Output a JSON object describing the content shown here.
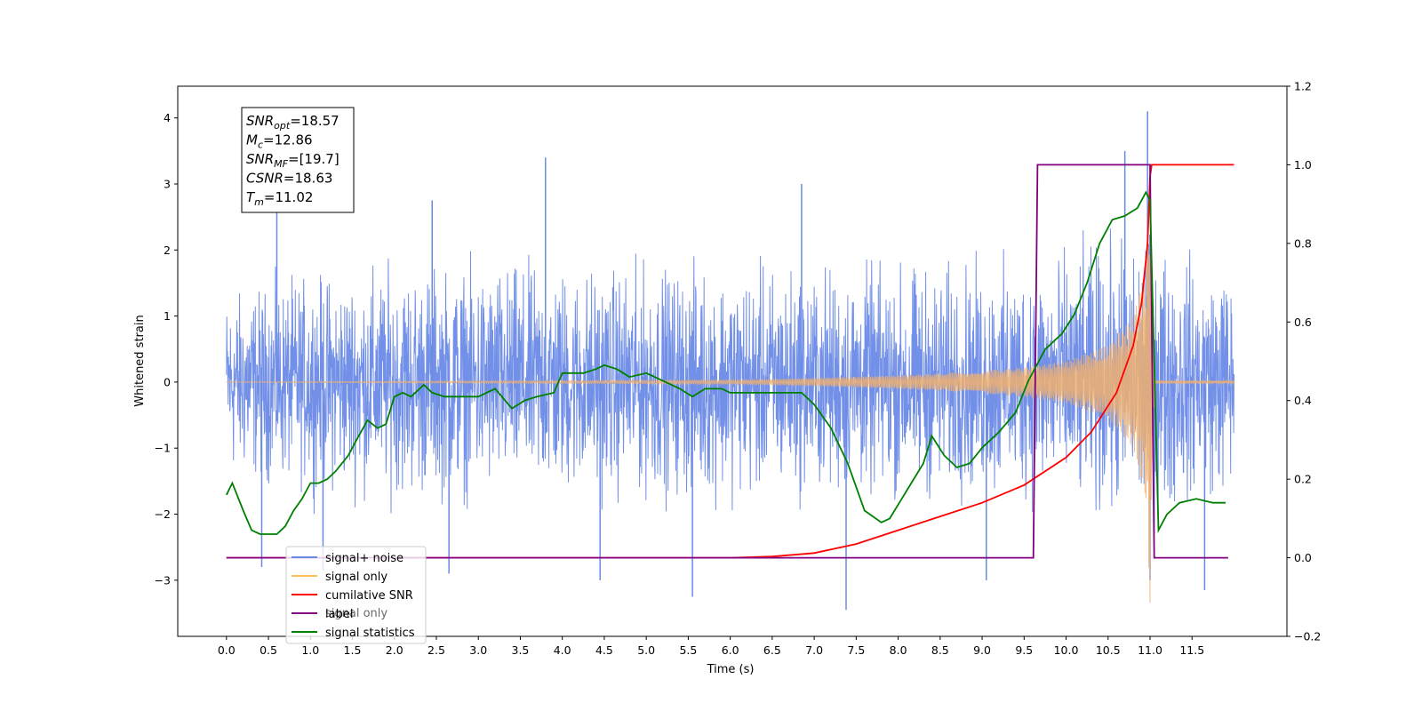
{
  "chart_data": {
    "type": "line",
    "xlabel": "Time (s)",
    "ylabel": "Whitened strain",
    "xlim": [
      -0.58,
      12.63
    ],
    "ylim": [
      -3.85,
      4.48
    ],
    "y2lim": [
      -0.2,
      1.2
    ],
    "x_ticks": [
      0.0,
      0.5,
      1.0,
      1.5,
      2.0,
      2.5,
      3.0,
      3.5,
      4.0,
      4.5,
      5.0,
      5.5,
      6.0,
      6.5,
      7.0,
      7.5,
      8.0,
      8.5,
      9.0,
      9.5,
      10.0,
      10.5,
      11.0,
      11.5
    ],
    "x_tick_labels": [
      "0.0",
      "0.5",
      "1.0",
      "1.5",
      "2.0",
      "2.5",
      "3.0",
      "3.5",
      "4.0",
      "4.5",
      "5.0",
      "5.5",
      "6.0",
      "6.5",
      "7.0",
      "7.5",
      "8.0",
      "8.5",
      "9.0",
      "9.5",
      "10.0",
      "10.5",
      "11.0",
      "11.5"
    ],
    "y_ticks": [
      -3,
      -2,
      -1,
      0,
      1,
      2,
      3,
      4
    ],
    "y_tick_labels": [
      "−3",
      "−2",
      "−1",
      "0",
      "1",
      "2",
      "3",
      "4"
    ],
    "y2_ticks": [
      -0.2,
      0.0,
      0.2,
      0.4,
      0.6,
      0.8,
      1.0,
      1.2
    ],
    "y2_tick_labels": [
      "−0.2",
      "0.0",
      "0.2",
      "0.4",
      "0.6",
      "0.8",
      "1.0",
      "1.2"
    ],
    "grid": false,
    "legend_position": "lower-left",
    "legend": [
      {
        "label": "signal+ noise",
        "color": "#6a8ae6"
      },
      {
        "label": "signal only",
        "color": "#ffc05c"
      },
      {
        "label": "cumilative SNR",
        "color": "#ff0000"
      },
      {
        "label": "label",
        "color": "#800080"
      },
      {
        "label": "signal statistics",
        "color": "#008000"
      }
    ],
    "hidden_legend_text": [
      "signal only"
    ],
    "annotation": {
      "lines": [
        {
          "main": "SNR",
          "sub": "opt",
          "value": "=18.57"
        },
        {
          "main": "M",
          "sub": "c",
          "value": "=12.86"
        },
        {
          "main": "SNR",
          "sub": "MF",
          "value": "=[19.7]"
        },
        {
          "main": "CSNR",
          "sub": "",
          "value": "=18.63"
        },
        {
          "main": "T",
          "sub": "m",
          "value": "=11.02"
        }
      ]
    },
    "series": [
      {
        "name": "signal+ noise",
        "axis": "left",
        "color": "#6a8ae6",
        "style": "noise",
        "x_range": [
          0.0,
          12.0
        ],
        "envelope": {
          "x": [
            0.0,
            1.0,
            2.0,
            3.0,
            4.0,
            5.0,
            6.0,
            7.0,
            8.0,
            9.0,
            9.6,
            10.0,
            10.5,
            11.0,
            11.5,
            12.0
          ],
          "upper": [
            1.75,
            2.1,
            2.3,
            2.3,
            2.3,
            2.3,
            2.3,
            2.3,
            2.3,
            2.35,
            2.45,
            2.55,
            2.8,
            3.0,
            2.4,
            2.35
          ],
          "lower": [
            -1.9,
            -2.1,
            -2.3,
            -2.3,
            -2.3,
            -2.3,
            -2.3,
            -2.3,
            -2.3,
            -2.35,
            -2.4,
            -2.5,
            -2.7,
            -2.95,
            -2.3,
            -2.2
          ]
        },
        "spikes": [
          {
            "x": 0.42,
            "y": -2.8
          },
          {
            "x": 0.6,
            "y": 2.7
          },
          {
            "x": 2.45,
            "y": 2.75
          },
          {
            "x": 3.8,
            "y": 3.4
          },
          {
            "x": 4.45,
            "y": -3.0
          },
          {
            "x": 5.55,
            "y": -3.25
          },
          {
            "x": 7.38,
            "y": -3.45
          },
          {
            "x": 10.7,
            "y": 3.5
          },
          {
            "x": 10.97,
            "y": 4.1
          },
          {
            "x": 11.0,
            "y": -3.0
          },
          {
            "x": 11.65,
            "y": -3.15
          },
          {
            "x": 9.05,
            "y": -3.0
          },
          {
            "x": 6.85,
            "y": 3.0
          },
          {
            "x": 1.15,
            "y": -2.85
          },
          {
            "x": 2.65,
            "y": -2.9
          }
        ]
      },
      {
        "name": "signal only",
        "axis": "left",
        "color": "#f0b070",
        "style": "chirp",
        "x_range": [
          0.0,
          12.0
        ],
        "envelope": {
          "x": [
            0.0,
            6.0,
            7.0,
            8.0,
            8.5,
            9.0,
            9.5,
            10.0,
            10.5,
            10.8,
            10.95,
            11.0,
            11.05,
            12.0
          ],
          "amp": [
            0.0,
            0.03,
            0.06,
            0.1,
            0.13,
            0.17,
            0.22,
            0.32,
            0.55,
            1.0,
            1.8,
            3.5,
            0.02,
            0.02
          ]
        }
      },
      {
        "name": "cumilative SNR",
        "axis": "right",
        "color": "#ff0000",
        "x": [
          0.0,
          6.0,
          6.5,
          7.0,
          7.5,
          8.0,
          8.5,
          9.0,
          9.5,
          10.0,
          10.3,
          10.6,
          10.8,
          10.9,
          10.97,
          11.0,
          11.02,
          11.05,
          12.0
        ],
        "y": [
          0.0,
          0.0,
          0.003,
          0.012,
          0.035,
          0.07,
          0.105,
          0.14,
          0.185,
          0.255,
          0.32,
          0.42,
          0.54,
          0.65,
          0.8,
          0.97,
          1.0,
          1.0,
          1.0
        ]
      },
      {
        "name": "label",
        "axis": "right",
        "color": "#800080",
        "x": [
          0.0,
          9.61,
          9.66,
          11.0,
          11.05,
          11.93
        ],
        "y": [
          0.0,
          0.0,
          1.0,
          1.0,
          0.0,
          0.0
        ]
      },
      {
        "name": "signal statistics",
        "axis": "right",
        "color": "#008000",
        "x": [
          0.0,
          0.07,
          0.2,
          0.3,
          0.4,
          0.5,
          0.6,
          0.7,
          0.8,
          0.9,
          1.0,
          1.1,
          1.2,
          1.3,
          1.45,
          1.55,
          1.68,
          1.8,
          1.9,
          2.0,
          2.1,
          2.2,
          2.35,
          2.45,
          2.6,
          2.8,
          3.0,
          3.2,
          3.4,
          3.55,
          3.7,
          3.9,
          4.0,
          4.1,
          4.25,
          4.4,
          4.5,
          4.65,
          4.8,
          5.0,
          5.2,
          5.4,
          5.55,
          5.7,
          5.9,
          6.0,
          6.2,
          6.4,
          6.6,
          6.85,
          7.0,
          7.2,
          7.4,
          7.6,
          7.8,
          7.9,
          8.1,
          8.3,
          8.4,
          8.55,
          8.7,
          8.85,
          9.0,
          9.2,
          9.4,
          9.55,
          9.75,
          9.95,
          10.1,
          10.25,
          10.4,
          10.55,
          10.7,
          10.85,
          10.95,
          11.0,
          11.1,
          11.2,
          11.35,
          11.55,
          11.75,
          11.9
        ],
        "y": [
          0.16,
          0.19,
          0.12,
          0.07,
          0.06,
          0.06,
          0.06,
          0.08,
          0.12,
          0.15,
          0.19,
          0.19,
          0.2,
          0.22,
          0.26,
          0.3,
          0.35,
          0.33,
          0.34,
          0.41,
          0.42,
          0.41,
          0.44,
          0.42,
          0.41,
          0.41,
          0.41,
          0.43,
          0.38,
          0.4,
          0.41,
          0.42,
          0.47,
          0.47,
          0.47,
          0.48,
          0.49,
          0.48,
          0.46,
          0.47,
          0.45,
          0.43,
          0.41,
          0.43,
          0.43,
          0.42,
          0.42,
          0.42,
          0.42,
          0.42,
          0.39,
          0.33,
          0.24,
          0.12,
          0.09,
          0.1,
          0.17,
          0.24,
          0.31,
          0.26,
          0.23,
          0.24,
          0.28,
          0.32,
          0.37,
          0.45,
          0.53,
          0.57,
          0.62,
          0.7,
          0.8,
          0.86,
          0.87,
          0.89,
          0.93,
          0.91,
          0.07,
          0.11,
          0.14,
          0.15,
          0.14,
          0.14
        ]
      }
    ]
  }
}
